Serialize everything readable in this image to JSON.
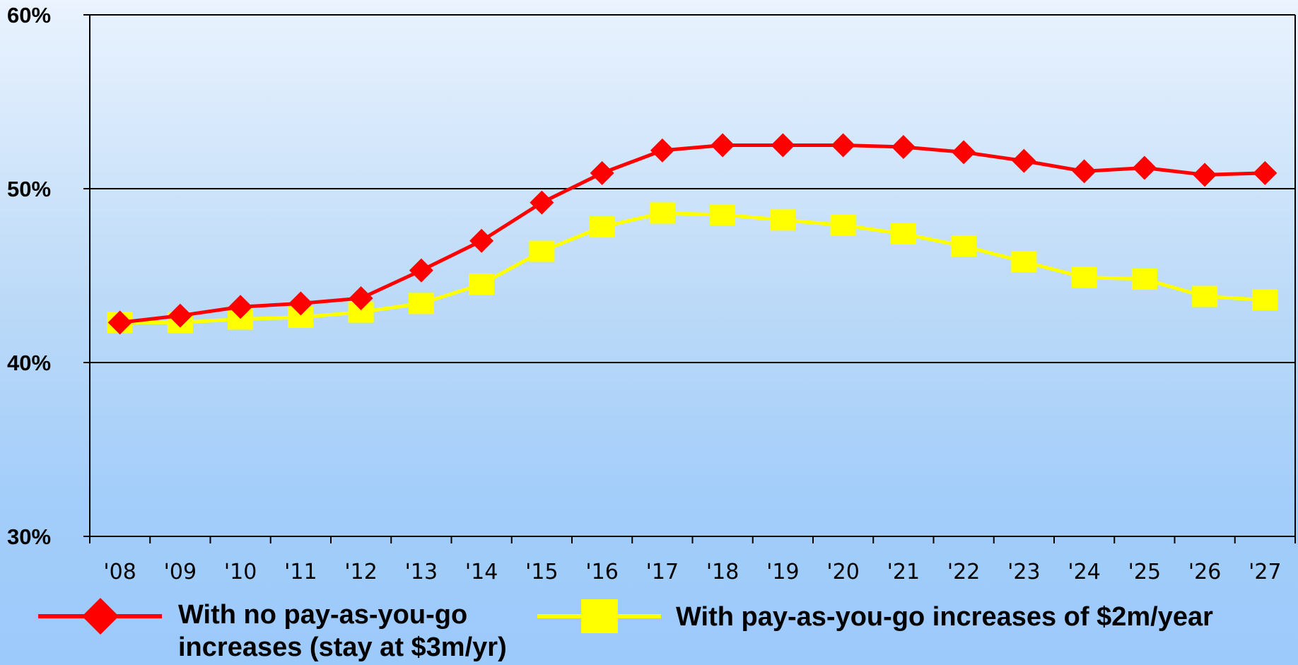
{
  "chart_data": {
    "type": "line",
    "categories": [
      "'08",
      "'09",
      "'10",
      "'11",
      "'12",
      "'13",
      "'14",
      "'15",
      "'16",
      "'17",
      "'18",
      "'19",
      "'20",
      "'21",
      "'22",
      "'23",
      "'24",
      "'25",
      "'26",
      "'27"
    ],
    "ylim": [
      30,
      60
    ],
    "yticks": [
      30,
      40,
      50,
      60
    ],
    "ytick_labels": [
      "30%",
      "40%",
      "50%",
      "60%"
    ],
    "grid": "horizontal",
    "legend_position": "bottom",
    "series": [
      {
        "name": "With no pay-as-you-go increases (stay at $3m/yr)",
        "label_lines": [
          "With no pay-as-you-go",
          "increases (stay at $3m/yr)"
        ],
        "color": "#ff0000",
        "marker": "diamond",
        "values": [
          42.3,
          42.7,
          43.2,
          43.4,
          43.7,
          45.3,
          47.0,
          49.2,
          50.9,
          52.2,
          52.5,
          52.5,
          52.5,
          52.4,
          52.1,
          51.6,
          51.0,
          51.2,
          50.8,
          50.9
        ]
      },
      {
        "name": "With pay-as-you-go increases of $2m/year",
        "label_lines": [
          "With pay-as-you-go increases of $2m/year"
        ],
        "color": "#ffff00",
        "marker": "square",
        "values": [
          42.3,
          42.3,
          42.5,
          42.6,
          42.9,
          43.4,
          44.5,
          46.4,
          47.8,
          48.6,
          48.5,
          48.2,
          47.9,
          47.4,
          46.7,
          45.8,
          44.9,
          44.8,
          43.8,
          43.6
        ]
      }
    ]
  }
}
